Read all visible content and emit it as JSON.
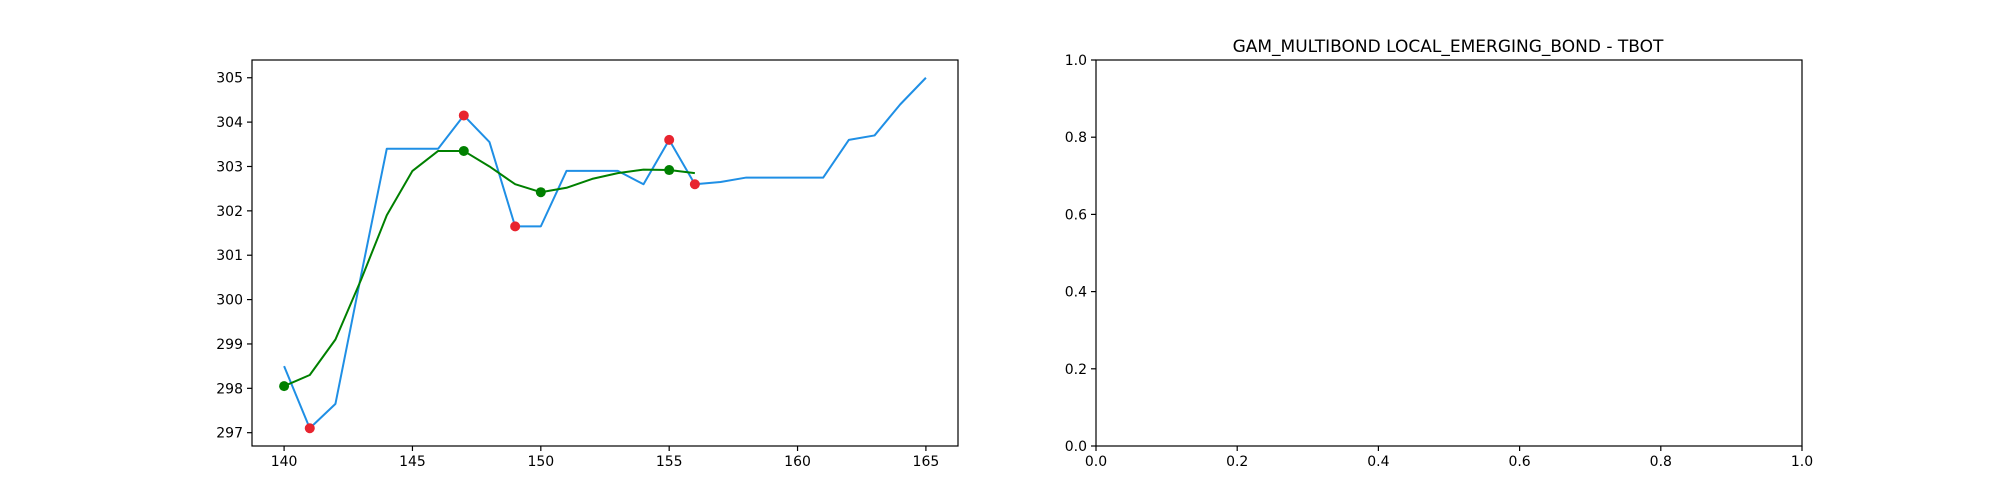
{
  "chart_data": [
    {
      "type": "line",
      "title": "",
      "xlabel": "",
      "ylabel": "",
      "xlim": [
        138.75,
        166.25
      ],
      "ylim": [
        296.7,
        305.4
      ],
      "xticks": [
        140,
        145,
        150,
        155,
        160,
        165
      ],
      "yticks": [
        297,
        298,
        299,
        300,
        301,
        302,
        303,
        304,
        305
      ],
      "grid": false,
      "legend": "none",
      "series": [
        {
          "color": "#1f8fe5",
          "kind": "line",
          "x": [
            140,
            141,
            142,
            143,
            144,
            145,
            146,
            147,
            148,
            149,
            150,
            151,
            152,
            153,
            154,
            155,
            156,
            157,
            158,
            159,
            160,
            161,
            162,
            163,
            164,
            165
          ],
          "y": [
            298.5,
            297.1,
            297.65,
            300.55,
            303.4,
            303.4,
            303.4,
            304.15,
            303.55,
            301.65,
            301.65,
            302.9,
            302.9,
            302.9,
            302.6,
            303.6,
            302.6,
            302.65,
            302.75,
            302.75,
            302.75,
            302.75,
            303.6,
            303.7,
            304.4,
            305.0
          ]
        },
        {
          "color": "#008000",
          "kind": "line",
          "x": [
            140,
            141,
            142,
            143,
            144,
            145,
            146,
            147,
            148,
            149,
            150,
            151,
            152,
            153,
            154,
            155,
            156
          ],
          "y": [
            298.05,
            298.3,
            299.1,
            300.45,
            301.9,
            302.9,
            303.35,
            303.35,
            303.0,
            302.6,
            302.42,
            302.52,
            302.72,
            302.85,
            302.93,
            302.92,
            302.85
          ]
        },
        {
          "color": "#e8242f",
          "kind": "scatter",
          "x": [
            141,
            147,
            149,
            155,
            156
          ],
          "y": [
            297.1,
            304.15,
            301.65,
            303.6,
            302.6
          ]
        },
        {
          "color": "#008000",
          "kind": "scatter",
          "x": [
            140,
            147,
            150,
            155
          ],
          "y": [
            298.05,
            303.35,
            302.42,
            302.92
          ]
        }
      ]
    },
    {
      "type": "line",
      "title": "GAM_MULTIBOND LOCAL_EMERGING_BOND - TBOT",
      "xlabel": "",
      "ylabel": "",
      "xlim": [
        0,
        1
      ],
      "ylim": [
        0,
        1
      ],
      "xticks": [
        "0.0",
        "0.2",
        "0.4",
        "0.6",
        "0.8",
        "1.0"
      ],
      "yticks": [
        "0.0",
        "0.2",
        "0.4",
        "0.6",
        "0.8",
        "1.0"
      ],
      "grid": false,
      "legend": "none",
      "series": []
    }
  ]
}
